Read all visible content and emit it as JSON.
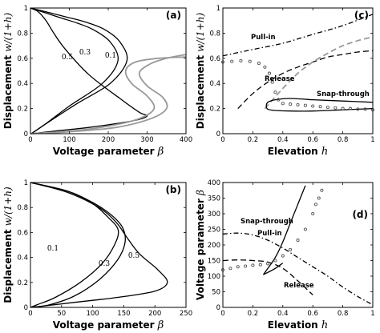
{
  "chart_data": [
    {
      "id": "a",
      "type": "line",
      "panel_label": "(a)",
      "xlabel": "Voltage parameter",
      "xlabel_symbol": "β",
      "ylabel": "Displacement",
      "ylabel_symbol": "w/(1+h)",
      "xlim": [
        0,
        400
      ],
      "ylim": [
        0,
        1
      ],
      "xticks": [
        "0",
        "100",
        "200",
        "300",
        "400"
      ],
      "yticks": [
        "0",
        "0.2",
        "0.4",
        "0.6",
        "0.8",
        "1"
      ],
      "curve_labels": [
        "0.5",
        "0.3",
        "0.1"
      ],
      "series": [
        {
          "color": "#000000",
          "x": [
            0,
            40,
            80,
            120,
            160,
            205,
            225,
            185,
            100,
            40,
            2
          ],
          "y": [
            1.0,
            0.96,
            0.92,
            0.88,
            0.83,
            0.73,
            0.58,
            0.4,
            0.22,
            0.08,
            0.0
          ]
        },
        {
          "color": "#000000",
          "x": [
            0,
            40,
            90,
            140,
            190,
            230,
            248,
            205,
            120,
            50,
            2
          ],
          "y": [
            1.0,
            0.97,
            0.93,
            0.89,
            0.83,
            0.73,
            0.58,
            0.4,
            0.24,
            0.1,
            0.0
          ]
        },
        {
          "color": "#000000",
          "x": [
            0,
            20,
            40,
            60,
            90,
            150,
            230,
            280,
            300,
            260,
            150,
            60,
            2
          ],
          "y": [
            1.0,
            0.97,
            0.9,
            0.8,
            0.67,
            0.47,
            0.28,
            0.17,
            0.14,
            0.1,
            0.05,
            0.02,
            0.0
          ]
        },
        {
          "color": "#999999",
          "x": [
            0,
            100,
            200,
            280,
            318,
            300,
            260,
            245,
            270,
            330,
            400
          ],
          "y": [
            0.0,
            0.02,
            0.06,
            0.12,
            0.2,
            0.3,
            0.4,
            0.5,
            0.57,
            0.6,
            0.61
          ]
        },
        {
          "color": "#999999",
          "x": [
            0,
            100,
            220,
            310,
            350,
            340,
            300,
            280,
            305,
            350,
            400
          ],
          "y": [
            0.0,
            0.015,
            0.05,
            0.12,
            0.2,
            0.29,
            0.38,
            0.48,
            0.55,
            0.6,
            0.63
          ]
        }
      ]
    },
    {
      "id": "b",
      "type": "line",
      "panel_label": "(b)",
      "xlabel": "Voltage parameter",
      "xlabel_symbol": "β",
      "ylabel": "Displacement",
      "ylabel_symbol": "w/(1+h)",
      "xlim": [
        0,
        250
      ],
      "ylim": [
        0,
        1
      ],
      "xticks": [
        "0",
        "50",
        "100",
        "150",
        "200",
        "250"
      ],
      "yticks": [
        "0",
        "0.2",
        "0.4",
        "0.6",
        "0.8",
        "1"
      ],
      "curve_labels": [
        "0.1",
        "0.3",
        "0.5"
      ],
      "series": [
        {
          "color": "#000000",
          "x": [
            0,
            60,
            100,
            125,
            141,
            135,
            115,
            80,
            40,
            10,
            0
          ],
          "y": [
            1.0,
            0.93,
            0.83,
            0.72,
            0.62,
            0.5,
            0.35,
            0.2,
            0.08,
            0.02,
            0.0
          ]
        },
        {
          "color": "#000000",
          "x": [
            0,
            60,
            100,
            130,
            148,
            152,
            140,
            110,
            70,
            30,
            0
          ],
          "y": [
            1.0,
            0.93,
            0.84,
            0.74,
            0.64,
            0.52,
            0.38,
            0.22,
            0.09,
            0.02,
            0.0
          ]
        },
        {
          "color": "#000000",
          "x": [
            0,
            60,
            110,
            138,
            155,
            175,
            205,
            220,
            200,
            140,
            70,
            20,
            0
          ],
          "y": [
            1.0,
            0.92,
            0.8,
            0.68,
            0.56,
            0.43,
            0.3,
            0.2,
            0.13,
            0.08,
            0.04,
            0.01,
            0.0
          ]
        }
      ]
    },
    {
      "id": "c",
      "type": "line",
      "panel_label": "(c)",
      "xlabel": "Elevation",
      "xlabel_symbol": "h",
      "ylabel": "Displacement",
      "ylabel_symbol": "w/(1+h)",
      "xlim": [
        0,
        1
      ],
      "ylim": [
        0,
        1
      ],
      "xticks": [
        "0",
        "0.2",
        "0.4",
        "0.6",
        "0.8",
        "1"
      ],
      "yticks": [
        "0",
        "0.2",
        "0.4",
        "0.6",
        "0.8",
        "1"
      ],
      "annotations": [
        "Pull-in",
        "Release",
        "Snap-through"
      ],
      "series": [
        {
          "style": "dashdot",
          "color": "#000000",
          "x": [
            0,
            0.2,
            0.4,
            0.6,
            0.8,
            1.0
          ],
          "y": [
            0.62,
            0.67,
            0.72,
            0.79,
            0.86,
            0.95
          ]
        },
        {
          "style": "dashed",
          "color": "#000000",
          "x": [
            0.1,
            0.2,
            0.3,
            0.4,
            0.5,
            0.6,
            0.7,
            0.8,
            0.9,
            1.0
          ],
          "y": [
            0.2,
            0.32,
            0.41,
            0.48,
            0.53,
            0.57,
            0.61,
            0.63,
            0.65,
            0.66
          ]
        },
        {
          "style": "dashed",
          "color": "#999999",
          "x": [
            0.28,
            0.4,
            0.5,
            0.6,
            0.7,
            0.8,
            0.9,
            1.0
          ],
          "y": [
            0.2,
            0.36,
            0.48,
            0.57,
            0.64,
            0.7,
            0.74,
            0.77
          ]
        },
        {
          "style": "solid",
          "color": "#000000",
          "x": [
            1.0,
            0.8,
            0.6,
            0.45,
            0.35,
            0.3,
            0.29,
            0.3,
            0.35,
            0.45,
            0.6,
            0.8,
            1.0
          ],
          "y": [
            0.2,
            0.19,
            0.18,
            0.18,
            0.185,
            0.195,
            0.22,
            0.25,
            0.27,
            0.28,
            0.27,
            0.26,
            0.25
          ]
        },
        {
          "style": "dotted-circles",
          "color": "#555555",
          "x": [
            0,
            0.06,
            0.12,
            0.18,
            0.24,
            0.28,
            0.31,
            0.33,
            0.35,
            0.37,
            0.4,
            0.45,
            0.5,
            0.55,
            0.6,
            0.65,
            0.7,
            0.75,
            0.8,
            0.85,
            0.9,
            0.95,
            1.0
          ],
          "y": [
            0.57,
            0.575,
            0.58,
            0.575,
            0.56,
            0.53,
            0.48,
            0.41,
            0.33,
            0.27,
            0.24,
            0.235,
            0.23,
            0.225,
            0.22,
            0.215,
            0.21,
            0.205,
            0.2,
            0.2,
            0.195,
            0.195,
            0.19
          ]
        }
      ]
    },
    {
      "id": "d",
      "type": "line",
      "panel_label": "(d)",
      "xlabel": "Elevation",
      "xlabel_symbol": "h",
      "ylabel": "Voltage parameter",
      "ylabel_symbol": "β",
      "xlim": [
        0,
        1
      ],
      "ylim": [
        0,
        400
      ],
      "xticks": [
        "0",
        "0.2",
        "0.4",
        "0.6",
        "0.8",
        "1"
      ],
      "yticks": [
        "0",
        "50",
        "100",
        "150",
        "200",
        "250",
        "300",
        "350",
        "400"
      ],
      "annotations": [
        "Snap-through",
        "Pull-in",
        "Release"
      ],
      "series": [
        {
          "style": "solid",
          "color": "#000000",
          "x": [
            0.27,
            0.3,
            0.35,
            0.4,
            0.45,
            0.5,
            0.55
          ],
          "y": [
            105,
            125,
            160,
            210,
            270,
            330,
            390
          ]
        },
        {
          "style": "solid",
          "color": "#000000",
          "x": [
            0.27,
            0.3,
            0.35,
            0.4
          ],
          "y": [
            105,
            112,
            125,
            142
          ]
        },
        {
          "style": "dashdot",
          "color": "#000000",
          "x": [
            0,
            0.1,
            0.2,
            0.3,
            0.4,
            0.5,
            0.6,
            0.7,
            0.8,
            0.9,
            1.0
          ],
          "y": [
            235,
            238,
            232,
            215,
            190,
            160,
            130,
            100,
            65,
            35,
            8
          ]
        },
        {
          "style": "dashed",
          "color": "#000000",
          "x": [
            0,
            0.1,
            0.2,
            0.3,
            0.4,
            0.5,
            0.6
          ],
          "y": [
            150,
            152,
            150,
            145,
            125,
            85,
            40
          ]
        },
        {
          "style": "dotted-circles",
          "color": "#555555",
          "x": [
            0,
            0.05,
            0.1,
            0.15,
            0.2,
            0.25,
            0.3,
            0.35,
            0.4,
            0.45,
            0.5,
            0.55,
            0.6,
            0.62,
            0.64,
            0.66
          ],
          "y": [
            120,
            125,
            130,
            132,
            135,
            137,
            140,
            150,
            165,
            185,
            215,
            250,
            300,
            330,
            350,
            375
          ]
        }
      ]
    }
  ]
}
